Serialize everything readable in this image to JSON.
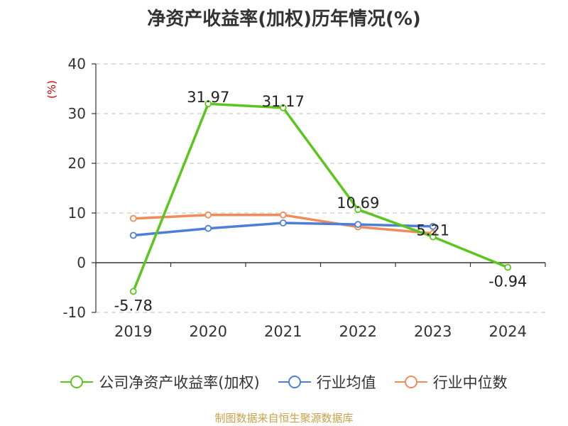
{
  "title": "净资产收益率(加权)历年情况(%)",
  "source": "制图数据来自恒生聚源数据库",
  "chart_data": {
    "type": "line",
    "title": "净资产收益率(加权)历年情况(%)",
    "ylabel": "(%)",
    "xlabel": "",
    "ylim": [
      -10,
      40
    ],
    "yticks": [
      "40",
      "30",
      "20",
      "10",
      "0",
      "-10"
    ],
    "categories": [
      "2019",
      "2020",
      "2021",
      "2022",
      "2023",
      "2024"
    ],
    "grid": true,
    "legend_position": "bottom",
    "series": [
      {
        "name": "公司净资产收益率(加权)",
        "color": "#5cc51f",
        "values": [
          -5.78,
          31.97,
          31.17,
          10.69,
          5.21,
          -0.94
        ],
        "labels": [
          "-5.78",
          "31.97",
          "31.17",
          "10.69",
          "5.21",
          "-0.94"
        ]
      },
      {
        "name": "行业均值",
        "color": "#4e7fd8",
        "values": [
          5.5,
          6.9,
          8.0,
          7.7,
          7.3,
          null
        ]
      },
      {
        "name": "行业中位数",
        "color": "#f08c5a",
        "values": [
          8.9,
          9.6,
          9.6,
          7.2,
          5.9,
          null
        ]
      }
    ]
  }
}
